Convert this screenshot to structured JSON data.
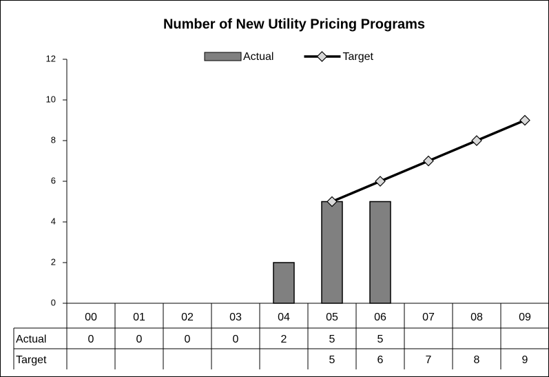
{
  "chart_data": {
    "type": "bar",
    "title": "Number of New Utility Pricing Programs",
    "categories": [
      "00",
      "01",
      "02",
      "03",
      "04",
      "05",
      "06",
      "07",
      "08",
      "09"
    ],
    "series": [
      {
        "name": "Actual",
        "type": "bar",
        "color": "#808080",
        "values": [
          0,
          0,
          0,
          0,
          2,
          5,
          5,
          null,
          null,
          null
        ]
      },
      {
        "name": "Target",
        "type": "line",
        "color": "#000000",
        "marker_color": "#d9d9d9",
        "values": [
          null,
          null,
          null,
          null,
          null,
          5,
          6,
          7,
          8,
          9
        ]
      }
    ],
    "ylim": [
      0,
      12
    ],
    "yticks": [
      0,
      2,
      4,
      6,
      8,
      10,
      12
    ],
    "grid": false,
    "legend": "top",
    "data_table": true
  }
}
